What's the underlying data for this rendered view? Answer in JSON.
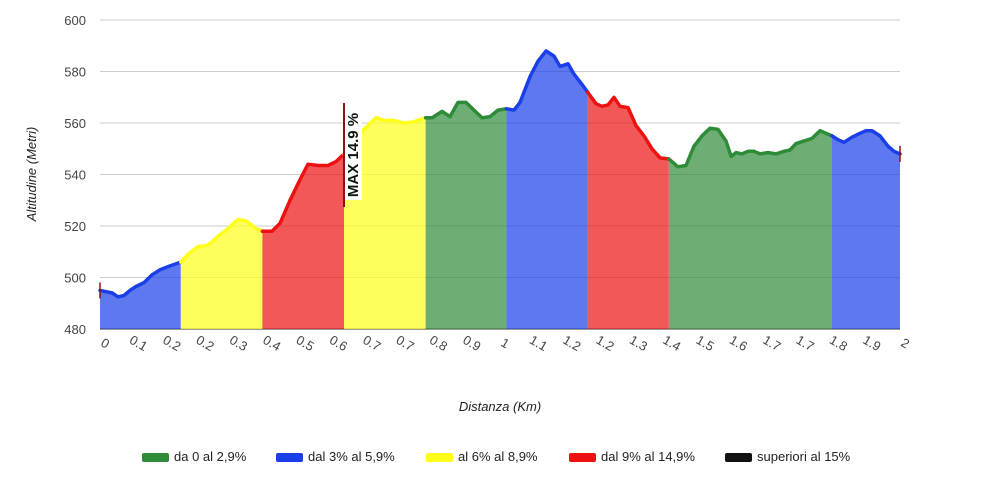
{
  "chart_data": {
    "type": "area",
    "title": "",
    "xlabel": "Distanza (Km)",
    "ylabel": "Altitudine (Metri)",
    "ylim": [
      480,
      600
    ],
    "xlim": [
      0,
      2
    ],
    "yticks": [
      480,
      500,
      520,
      540,
      560,
      580,
      600
    ],
    "xtick_labels": [
      "0",
      "0.1",
      "0.2",
      "0.2",
      "0.3",
      "0.4",
      "0.5",
      "0.6",
      "0.7",
      "0.7",
      "0.8",
      "0.9",
      "1",
      "1.1",
      "1.2",
      "1.2",
      "1.3",
      "1.4",
      "1.5",
      "1.6",
      "1.7",
      "1.7",
      "1.8",
      "1.9",
      "2"
    ],
    "grid": true,
    "legend_position": "bottom",
    "colors": {
      "green": "#2e8b37",
      "blue": "#1a3fe8",
      "yellow": "#ffff1a",
      "red": "#ee1111",
      "black": "#111111"
    },
    "legend": [
      {
        "label": "da 0 al 2,9%",
        "color": "green"
      },
      {
        "label": "dal 3% al 5,9%",
        "color": "blue"
      },
      {
        "label": "al 6% al 8,9%",
        "color": "yellow"
      },
      {
        "label": "dal 9% al 14,9%",
        "color": "red"
      },
      {
        "label": "superiori al 15%",
        "color": "black"
      }
    ],
    "segments": [
      {
        "x0": 0.0,
        "x1": 0.202,
        "color": "blue"
      },
      {
        "x0": 0.202,
        "x1": 0.406,
        "color": "yellow"
      },
      {
        "x0": 0.406,
        "x1": 0.61,
        "color": "red"
      },
      {
        "x0": 0.61,
        "x1": 0.814,
        "color": "yellow"
      },
      {
        "x0": 0.814,
        "x1": 1.016,
        "color": "green"
      },
      {
        "x0": 1.016,
        "x1": 1.219,
        "color": "blue"
      },
      {
        "x0": 1.219,
        "x1": 1.422,
        "color": "red"
      },
      {
        "x0": 1.422,
        "x1": 1.83,
        "color": "green"
      },
      {
        "x0": 1.83,
        "x1": 2.0,
        "color": "blue"
      }
    ],
    "profile": [
      [
        0.0,
        495
      ],
      [
        0.015,
        494.5
      ],
      [
        0.03,
        494
      ],
      [
        0.045,
        492.5
      ],
      [
        0.06,
        493
      ],
      [
        0.075,
        495
      ],
      [
        0.09,
        496.5
      ],
      [
        0.11,
        498
      ],
      [
        0.13,
        501
      ],
      [
        0.15,
        503
      ],
      [
        0.175,
        504.5
      ],
      [
        0.202,
        506
      ],
      [
        0.22,
        509
      ],
      [
        0.245,
        512
      ],
      [
        0.27,
        512.5
      ],
      [
        0.295,
        516
      ],
      [
        0.32,
        519
      ],
      [
        0.345,
        522.5
      ],
      [
        0.365,
        522
      ],
      [
        0.39,
        519
      ],
      [
        0.406,
        518
      ],
      [
        0.43,
        518
      ],
      [
        0.45,
        521
      ],
      [
        0.475,
        530
      ],
      [
        0.5,
        538
      ],
      [
        0.52,
        544
      ],
      [
        0.545,
        543.5
      ],
      [
        0.57,
        543.5
      ],
      [
        0.59,
        545
      ],
      [
        0.61,
        548
      ],
      [
        0.63,
        552
      ],
      [
        0.65,
        556
      ],
      [
        0.67,
        559
      ],
      [
        0.69,
        562
      ],
      [
        0.71,
        561
      ],
      [
        0.735,
        561
      ],
      [
        0.76,
        560
      ],
      [
        0.785,
        560.5
      ],
      [
        0.814,
        562
      ],
      [
        0.83,
        562
      ],
      [
        0.855,
        564.5
      ],
      [
        0.875,
        562.5
      ],
      [
        0.895,
        568
      ],
      [
        0.915,
        568
      ],
      [
        0.935,
        565
      ],
      [
        0.955,
        562
      ],
      [
        0.975,
        562.5
      ],
      [
        0.995,
        565
      ],
      [
        1.016,
        565.5
      ],
      [
        1.035,
        565
      ],
      [
        1.05,
        568
      ],
      [
        1.075,
        578
      ],
      [
        1.095,
        584
      ],
      [
        1.115,
        588
      ],
      [
        1.135,
        586
      ],
      [
        1.15,
        582
      ],
      [
        1.17,
        583
      ],
      [
        1.185,
        579
      ],
      [
        1.205,
        575
      ],
      [
        1.219,
        572
      ],
      [
        1.24,
        567.5
      ],
      [
        1.255,
        566.5
      ],
      [
        1.27,
        567
      ],
      [
        1.285,
        570
      ],
      [
        1.3,
        566.5
      ],
      [
        1.32,
        566
      ],
      [
        1.34,
        559
      ],
      [
        1.36,
        555
      ],
      [
        1.38,
        550
      ],
      [
        1.4,
        546.5
      ],
      [
        1.422,
        546
      ],
      [
        1.445,
        543
      ],
      [
        1.465,
        543.5
      ],
      [
        1.485,
        551
      ],
      [
        1.505,
        555
      ],
      [
        1.525,
        558
      ],
      [
        1.545,
        557.5
      ],
      [
        1.565,
        553
      ],
      [
        1.578,
        547
      ],
      [
        1.59,
        548.5
      ],
      [
        1.605,
        548
      ],
      [
        1.62,
        549
      ],
      [
        1.635,
        549
      ],
      [
        1.65,
        548
      ],
      [
        1.67,
        548.5
      ],
      [
        1.69,
        548
      ],
      [
        1.71,
        549
      ],
      [
        1.725,
        549.5
      ],
      [
        1.74,
        552
      ],
      [
        1.76,
        553
      ],
      [
        1.78,
        554
      ],
      [
        1.8,
        557
      ],
      [
        1.83,
        555
      ],
      [
        1.845,
        553.5
      ],
      [
        1.86,
        552.5
      ],
      [
        1.88,
        554.5
      ],
      [
        1.9,
        556
      ],
      [
        1.915,
        557
      ],
      [
        1.93,
        557
      ],
      [
        1.95,
        555
      ],
      [
        1.97,
        551
      ],
      [
        1.985,
        549
      ],
      [
        2.0,
        548
      ]
    ],
    "annotations": [
      {
        "text": "MAX 14.9 %",
        "x": 0.61
      }
    ]
  }
}
